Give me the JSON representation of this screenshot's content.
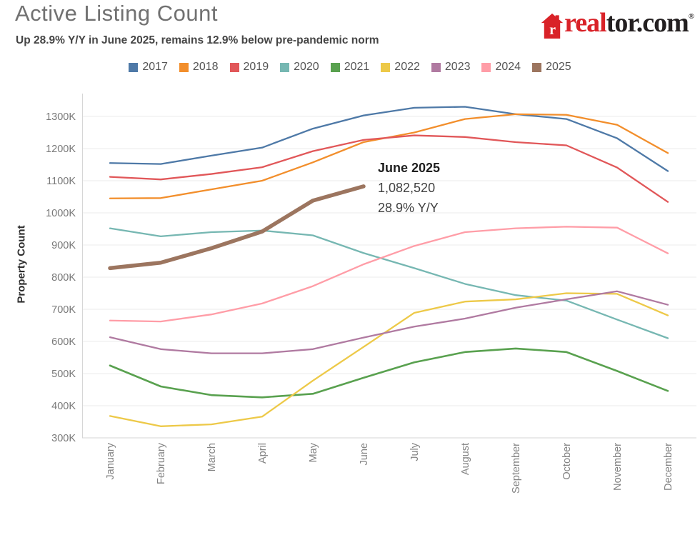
{
  "header": {
    "title": "Active Listing Count",
    "subtitle": "Up 28.9% Y/Y in June 2025, remains 12.9% below pre-pandemic norm",
    "logo": {
      "brand_red": "real",
      "brand_dark": "tor.com",
      "registered_mark": "®",
      "red": "#D92228",
      "dark": "#231F20"
    }
  },
  "annotation": {
    "title": "June 2025",
    "value": "1,082,520",
    "change": "28.9% Y/Y"
  },
  "chart_data": {
    "type": "line",
    "title": "Active Listing Count",
    "subtitle": "Up 28.9% Y/Y in June 2025, remains 12.9% below pre-pandemic norm",
    "xlabel": "",
    "ylabel": "Property Count",
    "unit": "properties (values in thousands)",
    "grid": true,
    "legend_position": "top",
    "categories": [
      "January",
      "February",
      "March",
      "April",
      "May",
      "June",
      "July",
      "August",
      "September",
      "October",
      "November",
      "December"
    ],
    "y_ticks_k": [
      300,
      400,
      500,
      600,
      700,
      800,
      900,
      1000,
      1100,
      1200,
      1300
    ],
    "y_tick_suffix": "K",
    "ylim_k": [
      300,
      1370
    ],
    "series": [
      {
        "name": "2017",
        "color": "#4E79A7",
        "line_width": 2.3,
        "values_k": [
          1155,
          1152,
          1178,
          1203,
          1262,
          1303,
          1327,
          1330,
          1307,
          1292,
          1232,
          1130
        ]
      },
      {
        "name": "2018",
        "color": "#F28E2B",
        "line_width": 2.3,
        "values_k": [
          1045,
          1046,
          1073,
          1100,
          1157,
          1220,
          1250,
          1292,
          1307,
          1305,
          1274,
          1186
        ]
      },
      {
        "name": "2019",
        "color": "#E15759",
        "line_width": 2.3,
        "values_k": [
          1112,
          1104,
          1121,
          1142,
          1192,
          1227,
          1241,
          1236,
          1220,
          1210,
          1141,
          1034
        ]
      },
      {
        "name": "2020",
        "color": "#76B7B2",
        "line_width": 2.3,
        "values_k": [
          952,
          927,
          940,
          945,
          930,
          875,
          828,
          779,
          744,
          727,
          668,
          610
        ]
      },
      {
        "name": "2021",
        "color": "#59A14F",
        "line_width": 2.6,
        "values_k": [
          525,
          460,
          433,
          426,
          437,
          487,
          535,
          567,
          578,
          567,
          508,
          446
        ]
      },
      {
        "name": "2022",
        "color": "#EDC948",
        "line_width": 2.3,
        "values_k": [
          368,
          336,
          342,
          366,
          478,
          583,
          689,
          724,
          731,
          750,
          748,
          681
        ]
      },
      {
        "name": "2023",
        "color": "#B07AA1",
        "line_width": 2.3,
        "values_k": [
          613,
          576,
          563,
          563,
          576,
          612,
          646,
          671,
          705,
          731,
          756,
          714
        ]
      },
      {
        "name": "2024",
        "color": "#FF9DA7",
        "line_width": 2.3,
        "values_k": [
          665,
          662,
          684,
          718,
          772,
          840,
          897,
          940,
          952,
          957,
          954,
          874
        ]
      },
      {
        "name": "2025",
        "color": "#9C755F",
        "line_width": 5.5,
        "values_k": [
          828,
          845,
          890,
          942,
          1038,
          1082.52
        ]
      }
    ],
    "annotations": [
      {
        "label": "June 2025",
        "value": "1,082,520",
        "change": "28.9% Y/Y",
        "month": "June",
        "series": "2025"
      }
    ]
  }
}
